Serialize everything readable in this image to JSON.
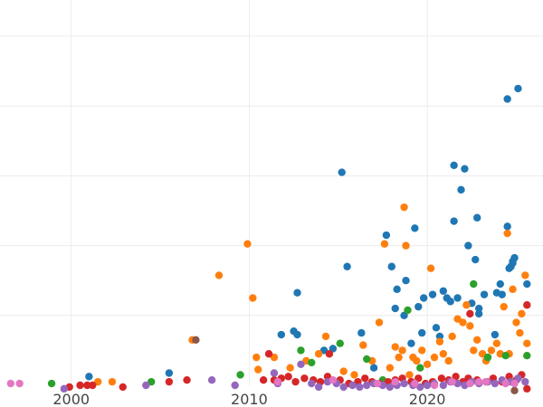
{
  "chart_data": {
    "type": "scatter",
    "title": "",
    "xlabel": "",
    "ylabel": "",
    "xlim": [
      1996,
      2026.5
    ],
    "ylim": [
      0,
      100
    ],
    "x_ticks": [
      2000,
      2010,
      2020
    ],
    "x_tick_labels": [
      "2000",
      "2010",
      "2020"
    ],
    "y_grid": [
      20,
      40,
      60,
      80,
      100
    ],
    "grid": true,
    "legend": "none",
    "series": [
      {
        "name": "blue",
        "color": "#1f77b4",
        "points": [
          [
            2001,
            2.5
          ],
          [
            2005.5,
            3.5
          ],
          [
            2011.8,
            14.5
          ],
          [
            2012.5,
            15.5
          ],
          [
            2012.7,
            26.5
          ],
          [
            2012.7,
            14.5
          ],
          [
            2014.2,
            10
          ],
          [
            2014.7,
            10.5
          ],
          [
            2015.2,
            61
          ],
          [
            2015.5,
            34
          ],
          [
            2016.3,
            15
          ],
          [
            2017,
            5
          ],
          [
            2017.7,
            43
          ],
          [
            2018,
            34
          ],
          [
            2018.2,
            22
          ],
          [
            2018.3,
            27.5
          ],
          [
            2018.7,
            20
          ],
          [
            2018.8,
            30
          ],
          [
            2019.1,
            12
          ],
          [
            2019.3,
            45
          ],
          [
            2019.5,
            22.5
          ],
          [
            2019.7,
            15
          ],
          [
            2019.8,
            25
          ],
          [
            2020.3,
            26
          ],
          [
            2020.5,
            16.5
          ],
          [
            2020.7,
            14
          ],
          [
            2020.9,
            27
          ],
          [
            2021.1,
            25
          ],
          [
            2021.3,
            24
          ],
          [
            2021.5,
            63
          ],
          [
            2021.5,
            47
          ],
          [
            2021.7,
            25
          ],
          [
            2021.9,
            56
          ],
          [
            2022.1,
            62
          ],
          [
            2022.3,
            40
          ],
          [
            2022.5,
            23.5
          ],
          [
            2022.7,
            36
          ],
          [
            2022.8,
            48
          ],
          [
            2022.9,
            20.5
          ],
          [
            2022.9,
            22
          ],
          [
            2023.2,
            26
          ],
          [
            2023.8,
            14.5
          ],
          [
            2023.9,
            26.5
          ],
          [
            2024.1,
            29
          ],
          [
            2024.2,
            26
          ],
          [
            2024.5,
            82
          ],
          [
            2024.5,
            45.5
          ],
          [
            2024.6,
            33.5
          ],
          [
            2024.7,
            34
          ],
          [
            2024.8,
            35
          ],
          [
            2024.8,
            35.5
          ],
          [
            2024.9,
            36.5
          ],
          [
            2025.1,
            85
          ],
          [
            2025.6,
            29
          ]
        ]
      },
      {
        "name": "orange",
        "color": "#ff7f0e",
        "points": [
          [
            2001.5,
            1
          ],
          [
            2002.3,
            1
          ],
          [
            2006.8,
            13
          ],
          [
            2008.3,
            31.5
          ],
          [
            2009.9,
            40.5
          ],
          [
            2010.2,
            25
          ],
          [
            2010.4,
            8
          ],
          [
            2010.5,
            4.5
          ],
          [
            2011.4,
            8
          ],
          [
            2012.3,
            5
          ],
          [
            2013.2,
            7
          ],
          [
            2013.9,
            9
          ],
          [
            2014.3,
            14
          ],
          [
            2015.3,
            4
          ],
          [
            2015.9,
            3
          ],
          [
            2016.4,
            11.5
          ],
          [
            2016.9,
            7
          ],
          [
            2017.3,
            18
          ],
          [
            2017.6,
            40.5
          ],
          [
            2017.9,
            5
          ],
          [
            2018.2,
            11
          ],
          [
            2018.4,
            8
          ],
          [
            2018.6,
            10
          ],
          [
            2018.7,
            51
          ],
          [
            2018.8,
            40
          ],
          [
            2019,
            3
          ],
          [
            2019.2,
            8
          ],
          [
            2019.4,
            7
          ],
          [
            2019.7,
            10
          ],
          [
            2020,
            6
          ],
          [
            2020.2,
            33.5
          ],
          [
            2020.4,
            8
          ],
          [
            2020.7,
            12.5
          ],
          [
            2020.9,
            9
          ],
          [
            2021.2,
            7
          ],
          [
            2021.4,
            14
          ],
          [
            2021.7,
            19
          ],
          [
            2022,
            18
          ],
          [
            2022.2,
            23
          ],
          [
            2022.4,
            17
          ],
          [
            2022.6,
            10
          ],
          [
            2022.8,
            13
          ],
          [
            2023.1,
            9
          ],
          [
            2023.3,
            7
          ],
          [
            2023.6,
            10
          ],
          [
            2023.9,
            12
          ],
          [
            2024.1,
            9
          ],
          [
            2024.3,
            22.5
          ],
          [
            2024.5,
            43.5
          ],
          [
            2024.6,
            9
          ],
          [
            2024.8,
            27.5
          ],
          [
            2025,
            18
          ],
          [
            2025.2,
            15
          ],
          [
            2025.3,
            20.5
          ],
          [
            2025.5,
            31.5
          ],
          [
            2025.6,
            12
          ]
        ]
      },
      {
        "name": "green",
        "color": "#2ca02c",
        "points": [
          [
            1998.9,
            0.5
          ],
          [
            2004.5,
            1
          ],
          [
            2009.5,
            3
          ],
          [
            2012.9,
            10
          ],
          [
            2013.5,
            6.5
          ],
          [
            2015.1,
            12
          ],
          [
            2016.6,
            7.5
          ],
          [
            2017.5,
            1.5
          ],
          [
            2018.9,
            21.5
          ],
          [
            2019.6,
            5
          ],
          [
            2022.6,
            29
          ],
          [
            2023.4,
            8
          ],
          [
            2024.4,
            8.5
          ],
          [
            2025.6,
            8.5
          ]
        ]
      },
      {
        "name": "red",
        "color": "#d62728",
        "points": [
          [
            1999.9,
            -0.5
          ],
          [
            2000.5,
            0
          ],
          [
            2000.9,
            0
          ],
          [
            2001.2,
            0
          ],
          [
            2002.9,
            -0.5
          ],
          [
            2005.5,
            1
          ],
          [
            2006.5,
            1.5
          ],
          [
            2010.8,
            1.5
          ],
          [
            2011.1,
            9
          ],
          [
            2011.4,
            1.5
          ],
          [
            2011.8,
            2
          ],
          [
            2012.2,
            2.5
          ],
          [
            2012.6,
            1
          ],
          [
            2013.1,
            2
          ],
          [
            2013.6,
            1.5
          ],
          [
            2014,
            1
          ],
          [
            2014.4,
            2.5
          ],
          [
            2014.5,
            9
          ],
          [
            2015.1,
            1.5
          ],
          [
            2015.6,
            0.5
          ],
          [
            2016.1,
            1
          ],
          [
            2016.5,
            2
          ],
          [
            2016.9,
            1
          ],
          [
            2017.3,
            0.5
          ],
          [
            2017.8,
            1
          ],
          [
            2018.2,
            1.5
          ],
          [
            2018.6,
            2
          ],
          [
            2019.1,
            1
          ],
          [
            2019.5,
            2
          ],
          [
            2019.9,
            0.5
          ],
          [
            2020.3,
            1
          ],
          [
            2020.8,
            2
          ],
          [
            2021.2,
            1.5
          ],
          [
            2021.6,
            2.5
          ],
          [
            2022,
            1
          ],
          [
            2022.3,
            2
          ],
          [
            2022.4,
            20.5
          ],
          [
            2022.8,
            1.5
          ],
          [
            2023.3,
            1
          ],
          [
            2023.7,
            2
          ],
          [
            2024.2,
            1
          ],
          [
            2024.6,
            2.5
          ],
          [
            2025,
            1.5
          ],
          [
            2025.3,
            3
          ],
          [
            2025.6,
            23
          ],
          [
            2025.6,
            -1
          ]
        ]
      },
      {
        "name": "purple",
        "color": "#9467bd",
        "points": [
          [
            1999.6,
            -1
          ],
          [
            2004.2,
            0
          ],
          [
            2007.9,
            1.5
          ],
          [
            2009.2,
            0
          ],
          [
            2011.4,
            3.5
          ],
          [
            2011.6,
            0.5
          ],
          [
            2012.9,
            6
          ],
          [
            2013.5,
            0.5
          ],
          [
            2013.9,
            -0.5
          ],
          [
            2014.4,
            1
          ],
          [
            2014.9,
            0.5
          ],
          [
            2015.3,
            -0.5
          ],
          [
            2015.8,
            0
          ],
          [
            2016.2,
            -0.5
          ],
          [
            2016.6,
            0
          ],
          [
            2017,
            0.5
          ],
          [
            2017.5,
            0
          ],
          [
            2017.9,
            -0.5
          ],
          [
            2018.3,
            0
          ],
          [
            2018.7,
            0.5
          ],
          [
            2019.2,
            0
          ],
          [
            2019.6,
            -0.5
          ],
          [
            2020,
            0
          ],
          [
            2020.4,
            0.5
          ],
          [
            2020.9,
            0
          ],
          [
            2021.3,
            1
          ],
          [
            2021.7,
            0.5
          ],
          [
            2022.1,
            0
          ],
          [
            2022.5,
            1
          ],
          [
            2022.9,
            0.5
          ],
          [
            2023.4,
            1
          ],
          [
            2023.8,
            0.5
          ],
          [
            2024.2,
            1.5
          ],
          [
            2024.7,
            1
          ],
          [
            2025.1,
            2
          ],
          [
            2025.5,
            1
          ]
        ]
      },
      {
        "name": "brown",
        "color": "#8c564b",
        "points": [
          [
            2007.0,
            13
          ],
          [
            2024.9,
            -1.5
          ]
        ]
      },
      {
        "name": "pink",
        "color": "#e377c2",
        "points": [
          [
            1996.6,
            0.5
          ],
          [
            1997.1,
            0.5
          ],
          [
            2011.6,
            1
          ],
          [
            2014.7,
            1.5
          ],
          [
            2017.2,
            0.5
          ],
          [
            2018.2,
            1
          ],
          [
            2019.3,
            0.5
          ],
          [
            2020.4,
            0
          ],
          [
            2021.4,
            1
          ],
          [
            2022.4,
            0.5
          ],
          [
            2022.9,
            1
          ],
          [
            2023.3,
            1
          ],
          [
            2024.4,
            0.5
          ],
          [
            2024.9,
            0.5
          ]
        ]
      }
    ]
  }
}
